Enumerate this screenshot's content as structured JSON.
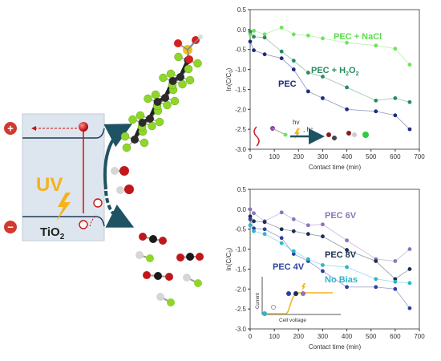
{
  "left_diagram": {
    "uv_label": "UV",
    "electrode_label": "TiO",
    "electrode_subscript": "2",
    "plus_sign": "+",
    "minus_sign": "−",
    "colors": {
      "band_fill": "#dde5ee",
      "uv": "#f5b21b",
      "arrow": "#1f5364",
      "electron": "#cc1111"
    },
    "icons": [
      "molecule-icon",
      "lightning-icon",
      "cloud-icon"
    ]
  },
  "chart_data": [
    {
      "type": "line",
      "panel": "top",
      "xlabel": "Contact time (min)",
      "ylabel": "ln(C/C0)",
      "xlim": [
        0,
        700
      ],
      "ylim": [
        -3.0,
        0.5
      ],
      "xticks": [
        0,
        100,
        200,
        300,
        400,
        500,
        600,
        700
      ],
      "yticks": [
        0.5,
        0.0,
        -0.5,
        -1.0,
        -1.5,
        -2.0,
        -2.5,
        -3.0
      ],
      "series": [
        {
          "name": "PEC + NaCl",
          "color": "#6fe35b",
          "x": [
            0,
            15,
            60,
            130,
            180,
            240,
            300,
            400,
            520,
            600,
            660
          ],
          "y": [
            -0.12,
            -0.03,
            -0.12,
            0.05,
            -0.12,
            -0.15,
            -0.22,
            -0.33,
            -0.4,
            -0.48,
            -0.88
          ]
        },
        {
          "name": "PEC + H2O2",
          "color": "#2a8a5e",
          "x": [
            0,
            15,
            60,
            130,
            180,
            240,
            300,
            400,
            520,
            600,
            660
          ],
          "y": [
            -0.05,
            -0.18,
            -0.2,
            -0.55,
            -0.78,
            -1.08,
            -1.18,
            -1.45,
            -1.78,
            -1.72,
            -1.82
          ]
        },
        {
          "name": "PEC",
          "color": "#1e2a80",
          "x": [
            0,
            15,
            60,
            130,
            180,
            240,
            300,
            400,
            520,
            600,
            660
          ],
          "y": [
            -0.3,
            -0.52,
            -0.62,
            -0.72,
            -1.0,
            -1.55,
            -1.72,
            -2.0,
            -2.05,
            -2.15,
            -2.5
          ]
        }
      ],
      "legend_text": {
        "nacl": "PEC + NaCl",
        "h2o2_main": "PEC + H",
        "h2o2_sub": "2",
        "h2o2_o": "O",
        "h2o2_sub2": "2",
        "pec": "PEC"
      },
      "inset": {
        "hv": "hv",
        "hplus": ", h⁺"
      }
    },
    {
      "type": "line",
      "panel": "bottom",
      "xlabel": "Contact time (min)",
      "ylabel": "ln(C/C0)",
      "xlim": [
        0,
        700
      ],
      "ylim": [
        -3.0,
        0.5
      ],
      "xticks": [
        0,
        100,
        200,
        300,
        400,
        500,
        600,
        700
      ],
      "yticks": [
        0.5,
        0.0,
        -0.5,
        -1.0,
        -1.5,
        -2.0,
        -2.5,
        -3.0
      ],
      "series": [
        {
          "name": "PEC 6V",
          "color": "#8a76b8",
          "x": [
            0,
            15,
            60,
            130,
            180,
            240,
            300,
            400,
            520,
            600,
            660
          ],
          "y": [
            0.0,
            -0.1,
            -0.3,
            -0.08,
            -0.25,
            -0.4,
            -0.38,
            -0.78,
            -1.25,
            -1.3,
            -1.0
          ]
        },
        {
          "name": "PEC 8V",
          "color": "#1a2f52",
          "x": [
            0,
            15,
            60,
            130,
            180,
            240,
            300,
            400,
            520,
            600,
            660
          ],
          "y": [
            -0.18,
            -0.3,
            -0.32,
            -0.5,
            -0.55,
            -0.62,
            -0.68,
            -1.02,
            -1.3,
            -1.75,
            -1.5
          ]
        },
        {
          "name": "PEC 4V",
          "color": "#2d3fa0",
          "x": [
            0,
            15,
            60,
            130,
            180,
            240,
            300,
            400,
            520,
            600,
            660
          ],
          "y": [
            -0.25,
            -0.48,
            -0.5,
            -0.72,
            -1.12,
            -1.3,
            -1.55,
            -1.95,
            -1.95,
            -2.0,
            -2.48
          ]
        },
        {
          "name": "No Bias",
          "color": "#2fb4c8",
          "x": [
            0,
            15,
            60,
            130,
            180,
            240,
            300,
            400,
            520,
            600,
            660
          ],
          "y": [
            -0.4,
            -0.55,
            -0.62,
            -0.85,
            -1.05,
            -1.25,
            -1.4,
            -1.45,
            -1.75,
            -1.82,
            -1.85
          ]
        }
      ],
      "legend_text": {
        "v6": "PEC 6V",
        "v8": "PEC 8V",
        "v4": "PEC 4V",
        "nobias": "No Bias"
      },
      "inset": {
        "ylabel": "Current",
        "xlabel": "Cell voltage"
      }
    }
  ]
}
